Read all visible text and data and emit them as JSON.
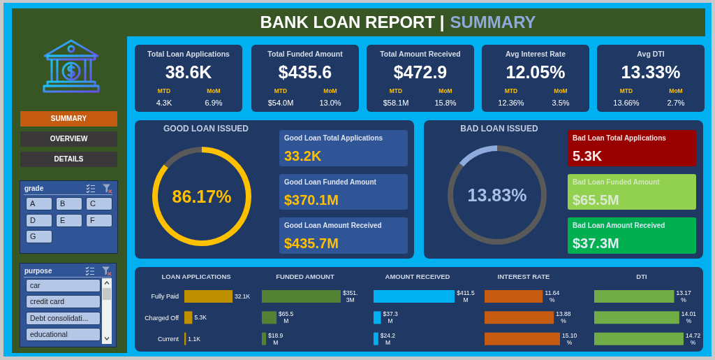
{
  "chart_data": [
    {
      "type": "other",
      "title": "BANK LOAN REPORT |",
      "subtitle": "SUMMARY"
    },
    {
      "type": "other",
      "annotations": [
        "SUMMARY",
        "OVERVIEW",
        "DETAILS"
      ]
    },
    {
      "type": "other",
      "title": "grade",
      "annotations": [
        "A",
        "B",
        "C",
        "D",
        "E",
        "F",
        "G"
      ]
    },
    {
      "type": "other",
      "title": "purpose",
      "annotations": [
        "car",
        "credit card",
        "Debt consolidati...",
        "educational"
      ]
    },
    {
      "type": "other",
      "title": "Total Loan Applications",
      "annotations": [
        "38.6K",
        "MTD",
        "MoM",
        "4.3K",
        "6.9%"
      ]
    },
    {
      "type": "other",
      "title": "Total Funded Amount",
      "annotations": [
        "$435.6",
        "MTD",
        "MoM",
        "$54.0M",
        "13.0%"
      ]
    },
    {
      "type": "other",
      "title": "Total Amount Received",
      "annotations": [
        "$472.9",
        "MTD",
        "MoM",
        "$58.1M",
        "15.8%"
      ]
    },
    {
      "type": "other",
      "title": "Avg Interest Rate",
      "annotations": [
        "12.05%",
        "MTD",
        "MoM",
        "12.36%",
        "3.5%"
      ]
    },
    {
      "type": "other",
      "title": "Avg DTI",
      "annotations": [
        "13.33%",
        "MTD",
        "MoM",
        "13.66%",
        "2.7%"
      ]
    },
    {
      "type": "donut",
      "title": "GOOD LOAN ISSUED",
      "categories": [
        null,
        null
      ],
      "values": [
        86.17,
        13.83
      ],
      "colors": [
        "#ffc000",
        "#595959"
      ],
      "annotations": [
        "86.17%"
      ]
    },
    {
      "type": "other",
      "title": "Good Loan Total Applications",
      "annotations": [
        "33.2K"
      ]
    },
    {
      "type": "other",
      "title": "Good Loan Funded Amount",
      "annotations": [
        "$370.1M"
      ]
    },
    {
      "type": "other",
      "title": "Good Loan Amount Received",
      "annotations": [
        "$435.7M"
      ]
    },
    {
      "type": "donut",
      "title": "BAD LOAN ISSUED",
      "categories": [
        null,
        null
      ],
      "values": [
        86.17,
        13.83
      ],
      "colors": [
        "#595959",
        "#8faadc"
      ],
      "annotations": [
        "13.83%"
      ]
    },
    {
      "type": "other",
      "title": "Bad Loan Total Applications",
      "annotations": [
        "5.3K"
      ]
    },
    {
      "type": "other",
      "title": "Bad Loan Funded Amount",
      "annotations": [
        "$65.5M"
      ]
    },
    {
      "type": "other",
      "title": "Bad Loan Amount Received",
      "annotations": [
        "$37.3M"
      ]
    },
    {
      "type": "bar",
      "orientation": "horizontal",
      "title": "LOAN APPLICATIONS",
      "categories": [
        "Fully Paid",
        "Charged Off",
        "Current"
      ],
      "values": [
        32.1,
        5.3,
        1.1
      ],
      "color": "#bf9000",
      "value_labels": [
        "32.1K",
        "5.3K",
        "1.1K"
      ],
      "tick_labels": "y"
    },
    {
      "type": "bar",
      "orientation": "horizontal",
      "title": "FUNDED AMOUNT",
      "categories": [
        null,
        null,
        null
      ],
      "values": [
        351.3,
        65.5,
        18.9
      ],
      "color": "#548235",
      "value_labels": [
        "$351.3M",
        "$65.5M",
        "$18.9M"
      ],
      "tick_labels": false
    },
    {
      "type": "bar",
      "orientation": "horizontal",
      "title": "AMOUNT RECEIVED",
      "categories": [
        null,
        null,
        null
      ],
      "values": [
        411.5,
        37.3,
        24.2
      ],
      "color": "#00b0f0",
      "value_labels": [
        "$411.5M",
        "$37.3M",
        "$24.2M"
      ],
      "tick_labels": false
    },
    {
      "type": "bar",
      "orientation": "horizontal",
      "title": "INTEREST RATE",
      "categories": [
        null,
        null,
        null
      ],
      "values": [
        11.64,
        13.88,
        15.1
      ],
      "color": "#c55a11",
      "value_labels": [
        "11.64%",
        "13.88%",
        "15.10%"
      ],
      "tick_labels": false
    },
    {
      "type": "bar",
      "orientation": "horizontal",
      "title": "DTI",
      "categories": [
        null,
        null,
        null
      ],
      "values": [
        13.17,
        14.01,
        14.72
      ],
      "color": "#70ad47",
      "value_labels": [
        "13.17%",
        "14.01%",
        "14.72%"
      ],
      "tick_labels": false
    }
  ]
}
